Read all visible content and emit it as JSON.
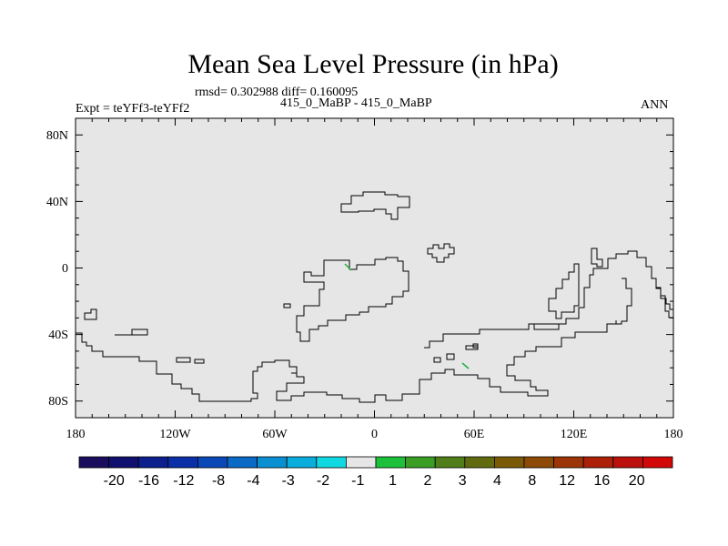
{
  "title": "Mean Sea Level Pressure (in hPa)",
  "stats_line": "rmsd= 0.302988  diff= 0.160095",
  "expt_label": "Expt = teYFf3-teYFf2",
  "run_label": "415_0_MaBP - 415_0_MaBP",
  "season_label": "ANN",
  "colors": {
    "background": "#e6e6e6",
    "coastline": "#000000",
    "contour_positive_small": "#1fae3a"
  },
  "map": {
    "lon_range": [
      -180,
      180
    ],
    "lat_range": [
      -90,
      90
    ],
    "x_tick_labels": [
      "180",
      "120W",
      "60W",
      "0",
      "60E",
      "120E",
      "180"
    ],
    "y_tick_labels": [
      "80N",
      "40N",
      "0",
      "40S",
      "80S"
    ]
  },
  "colorbar": {
    "colors": [
      "#1b0d5e",
      "#10106e",
      "#0c1f8c",
      "#0a2fa6",
      "#0a48b8",
      "#0a6ac6",
      "#0a8fd0",
      "#0aaedc",
      "#10d8e0",
      "#e6e6e6",
      "#1cc03a",
      "#3a9e24",
      "#507e1a",
      "#626a10",
      "#7a5a06",
      "#8c4a06",
      "#9c3408",
      "#ac2008",
      "#bc100c",
      "#d20808"
    ],
    "labels": [
      "-20",
      "-16",
      "-12",
      "-8",
      "-4",
      "-3",
      "-2",
      "-1",
      "1",
      "2",
      "3",
      "4",
      "8",
      "12",
      "16",
      "20"
    ]
  }
}
